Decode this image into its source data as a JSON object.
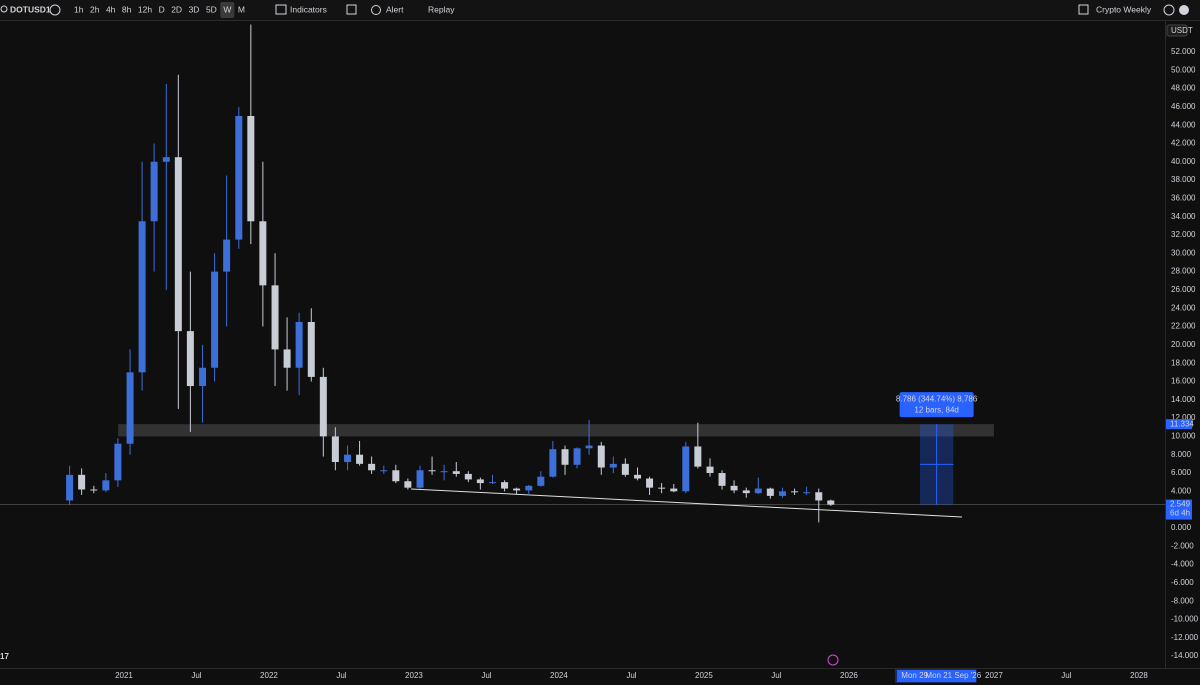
{
  "toolbar": {
    "symbol": "DOTUSD1",
    "intervals": [
      "1h",
      "2h",
      "4h",
      "8h",
      "12h",
      "D",
      "2D",
      "3D",
      "5D",
      "W",
      "M"
    ],
    "selected": "W",
    "indicators": "Indicators",
    "alert": "Alert",
    "replay": "Replay",
    "layout": "Crypto Weekly"
  },
  "price_axis": {
    "currency": "USDT"
  },
  "chart_data": {
    "type": "candlestick",
    "x": [
      2020.625,
      2020.708,
      2020.792,
      2020.875,
      2020.958,
      2021.042,
      2021.125,
      2021.208,
      2021.292,
      2021.375,
      2021.458,
      2021.542,
      2021.625,
      2021.708,
      2021.792,
      2021.875,
      2021.958,
      2022.042,
      2022.125,
      2022.208,
      2022.292,
      2022.375,
      2022.458,
      2022.542,
      2022.625,
      2022.708,
      2022.792,
      2022.875,
      2022.958,
      2023.042,
      2023.125,
      2023.208,
      2023.292,
      2023.375,
      2023.458,
      2023.542,
      2023.625,
      2023.708,
      2023.792,
      2023.875,
      2023.958,
      2024.042,
      2024.125,
      2024.208,
      2024.292,
      2024.375,
      2024.458,
      2024.542,
      2024.625,
      2024.708,
      2024.792,
      2024.875,
      2024.958,
      2025.042,
      2025.125,
      2025.208,
      2025.292,
      2025.375,
      2025.458,
      2025.542,
      2025.625,
      2025.708,
      2025.792,
      2025.875
    ],
    "open": [
      3.0,
      5.8,
      4.2,
      4.1,
      5.2,
      9.2,
      17.0,
      33.5,
      40.0,
      40.5,
      21.5,
      15.5,
      17.5,
      28.0,
      31.5,
      45.0,
      33.5,
      26.5,
      19.5,
      17.5,
      22.5,
      16.5,
      10.0,
      7.2,
      8.0,
      7.0,
      6.3,
      6.3,
      5.1,
      4.4,
      6.3,
      6.2,
      6.2,
      5.9,
      5.3,
      4.9,
      5.0,
      4.3,
      4.1,
      4.6,
      5.6,
      8.6,
      6.9,
      8.7,
      9.0,
      6.6,
      7.0,
      5.8,
      5.4,
      4.4,
      4.3,
      4.0,
      8.9,
      6.7,
      6.0,
      4.6,
      4.1,
      3.8,
      4.3,
      3.5,
      4.0,
      3.9,
      3.9,
      3.0
    ],
    "high": [
      6.8,
      6.5,
      4.6,
      6.0,
      9.8,
      19.5,
      40.0,
      42.0,
      48.5,
      49.5,
      28.0,
      20.0,
      30.0,
      38.5,
      46.0,
      55.0,
      40.0,
      30.0,
      23.0,
      23.5,
      24.0,
      17.5,
      11.0,
      9.0,
      9.5,
      7.8,
      6.8,
      6.9,
      5.4,
      6.8,
      7.8,
      6.9,
      7.2,
      6.2,
      5.5,
      5.8,
      5.2,
      4.4,
      4.7,
      6.2,
      9.5,
      9.0,
      8.8,
      11.8,
      9.4,
      7.8,
      7.6,
      6.6,
      5.6,
      4.9,
      4.8,
      9.4,
      11.5,
      7.6,
      6.3,
      5.2,
      4.4,
      5.5,
      4.4,
      4.4,
      4.3,
      4.5,
      4.3,
      3.1
    ],
    "low": [
      2.5,
      3.6,
      3.8,
      3.9,
      4.5,
      8.0,
      15.0,
      28.0,
      26.0,
      13.0,
      10.5,
      11.5,
      16.0,
      22.0,
      30.5,
      31.0,
      22.0,
      15.5,
      15.0,
      14.5,
      16.0,
      7.8,
      6.3,
      6.3,
      6.8,
      5.9,
      5.9,
      4.9,
      4.2,
      4.3,
      5.8,
      5.2,
      5.6,
      5.0,
      4.2,
      4.8,
      4.0,
      3.6,
      3.6,
      4.5,
      5.5,
      5.8,
      6.5,
      8.0,
      5.8,
      6.0,
      5.6,
      5.2,
      3.6,
      3.8,
      3.9,
      3.8,
      6.5,
      5.6,
      4.2,
      3.8,
      3.3,
      3.7,
      3.2,
      3.3,
      3.6,
      3.6,
      0.6,
      2.4
    ],
    "close": [
      5.8,
      4.2,
      4.1,
      5.2,
      9.2,
      17.0,
      33.5,
      40.0,
      40.5,
      21.5,
      15.5,
      17.5,
      28.0,
      31.5,
      45.0,
      33.5,
      26.5,
      19.5,
      17.5,
      22.5,
      16.5,
      10.0,
      7.2,
      8.0,
      7.0,
      6.3,
      6.3,
      5.1,
      4.4,
      6.3,
      6.2,
      6.2,
      5.9,
      5.3,
      4.9,
      5.0,
      4.3,
      4.1,
      4.6,
      5.6,
      8.6,
      6.9,
      8.7,
      9.0,
      6.6,
      7.0,
      5.8,
      5.4,
      4.4,
      4.3,
      4.0,
      8.9,
      6.7,
      6.0,
      4.6,
      4.1,
      3.8,
      4.3,
      3.5,
      4.0,
      3.9,
      3.9,
      3.0,
      2.55
    ],
    "up_color": "#3d6fd9",
    "down_color": "#c8ccd4",
    "xlim": [
      2020.145,
      2028.18
    ],
    "ylim": [
      -15.3,
      54.94
    ],
    "xticks": [
      2021,
      {
        "value": 2021.5,
        "label": "Jul"
      },
      2022,
      {
        "value": 2022.5,
        "label": "Jul"
      },
      2023,
      {
        "value": 2023.5,
        "label": "Jul"
      },
      2024,
      {
        "value": 2024.5,
        "label": "Jul"
      },
      2025,
      {
        "value": 2025.5,
        "label": "Jul"
      },
      2026,
      2027,
      {
        "value": 2027.5,
        "label": "Jul"
      },
      2028
    ],
    "yticks": [
      {
        "value": 52,
        "label": "52.000"
      },
      {
        "value": 50,
        "label": "50.000"
      },
      {
        "value": 48,
        "label": "48.000"
      },
      {
        "value": 46,
        "label": "46.000"
      },
      {
        "value": 44,
        "label": "44.000"
      },
      {
        "value": 42,
        "label": "42.000"
      },
      {
        "value": 40,
        "label": "40.000"
      },
      {
        "value": 38,
        "label": "38.000"
      },
      {
        "value": 36,
        "label": "36.000"
      },
      {
        "value": 34,
        "label": "34.000"
      },
      {
        "value": 32,
        "label": "32.000"
      },
      {
        "value": 30,
        "label": "30.000"
      },
      {
        "value": 28,
        "label": "28.000"
      },
      {
        "value": 26,
        "label": "26.000"
      },
      {
        "value": 24,
        "label": "24.000"
      },
      {
        "value": 22,
        "label": "22.000"
      },
      {
        "value": 20,
        "label": "20.000"
      },
      {
        "value": 18,
        "label": "18.000"
      },
      {
        "value": 16,
        "label": "16.000"
      },
      {
        "value": 14,
        "label": "14.000"
      },
      {
        "value": 12,
        "label": "12.000"
      },
      {
        "value": 10,
        "label": "10.000"
      },
      {
        "value": 8,
        "label": "8.000"
      },
      {
        "value": 6,
        "label": "6.000"
      },
      {
        "value": 4,
        "label": "4.000"
      },
      {
        "value": 0,
        "label": "0.000"
      },
      {
        "value": -2,
        "label": "-2.000"
      },
      {
        "value": -4,
        "label": "-4.000"
      },
      {
        "value": -6,
        "label": "-6.000"
      },
      {
        "value": -8,
        "label": "-8.000"
      },
      {
        "value": -10,
        "label": "-10.000"
      },
      {
        "value": -12,
        "label": "-12.000"
      },
      {
        "value": -14,
        "label": "-14.000"
      }
    ],
    "zone": [
      10,
      11.334
    ],
    "zone_x": [
      2020.96,
      2027.0
    ],
    "last_price": 2.549,
    "countdown": "6d 4h",
    "trendline": {
      "x": [
        2022.98,
        2026.78
      ],
      "y": [
        4.26,
        1.2
      ]
    },
    "measure": {
      "x": [
        2026.49,
        2026.72
      ],
      "y": [
        2.549,
        11.334
      ],
      "label": "8.786 (344.74%) 8,786",
      "sublabel": "12 bars, 84d"
    },
    "time_labels": [
      "Mon 29 Ju",
      "Mon 21 Sep '26"
    ]
  }
}
